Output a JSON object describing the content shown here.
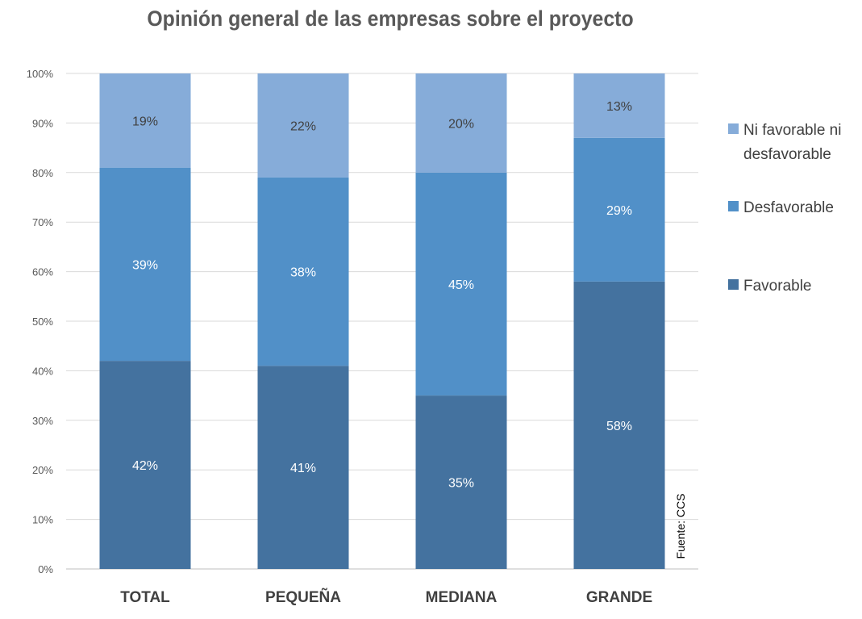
{
  "chart_data": {
    "type": "bar",
    "stacked": true,
    "title": "Opinión general de las empresas sobre el proyecto",
    "categories": [
      "TOTAL",
      "PEQUEÑA",
      "MEDIANA",
      "GRANDE"
    ],
    "series": [
      {
        "name": "Favorable",
        "values": [
          42,
          41,
          35,
          58
        ],
        "labels": [
          "42%",
          "41%",
          "35%",
          "58%"
        ],
        "color": "#44729f",
        "label_color": "#ffffff"
      },
      {
        "name": "Desfavorable",
        "values": [
          39,
          38,
          45,
          29
        ],
        "labels": [
          "39%",
          "38%",
          "45%",
          "29%"
        ],
        "color": "#5190c8",
        "label_color": "#ffffff"
      },
      {
        "name": "Ni favorable ni desfavorable",
        "values": [
          19,
          22,
          20,
          13
        ],
        "labels": [
          "19%",
          "22%",
          "20%",
          "13%"
        ],
        "color": "#86acd9",
        "label_color": "#404040"
      }
    ],
    "y_ticks": [
      "0%",
      "10%",
      "20%",
      "30%",
      "40%",
      "50%",
      "60%",
      "70%",
      "80%",
      "90%",
      "100%"
    ],
    "ylim": [
      0,
      100
    ],
    "grid": true,
    "legend": {
      "position": "right",
      "entries": [
        {
          "lines": [
            "Ni favorable ni",
            "desfavorable"
          ],
          "color": "#86acd9"
        },
        {
          "lines": [
            "Desfavorable"
          ],
          "color": "#5190c8"
        },
        {
          "lines": [
            "Favorable"
          ],
          "color": "#44729f"
        }
      ]
    },
    "source_note": "Fuente: CCS"
  }
}
